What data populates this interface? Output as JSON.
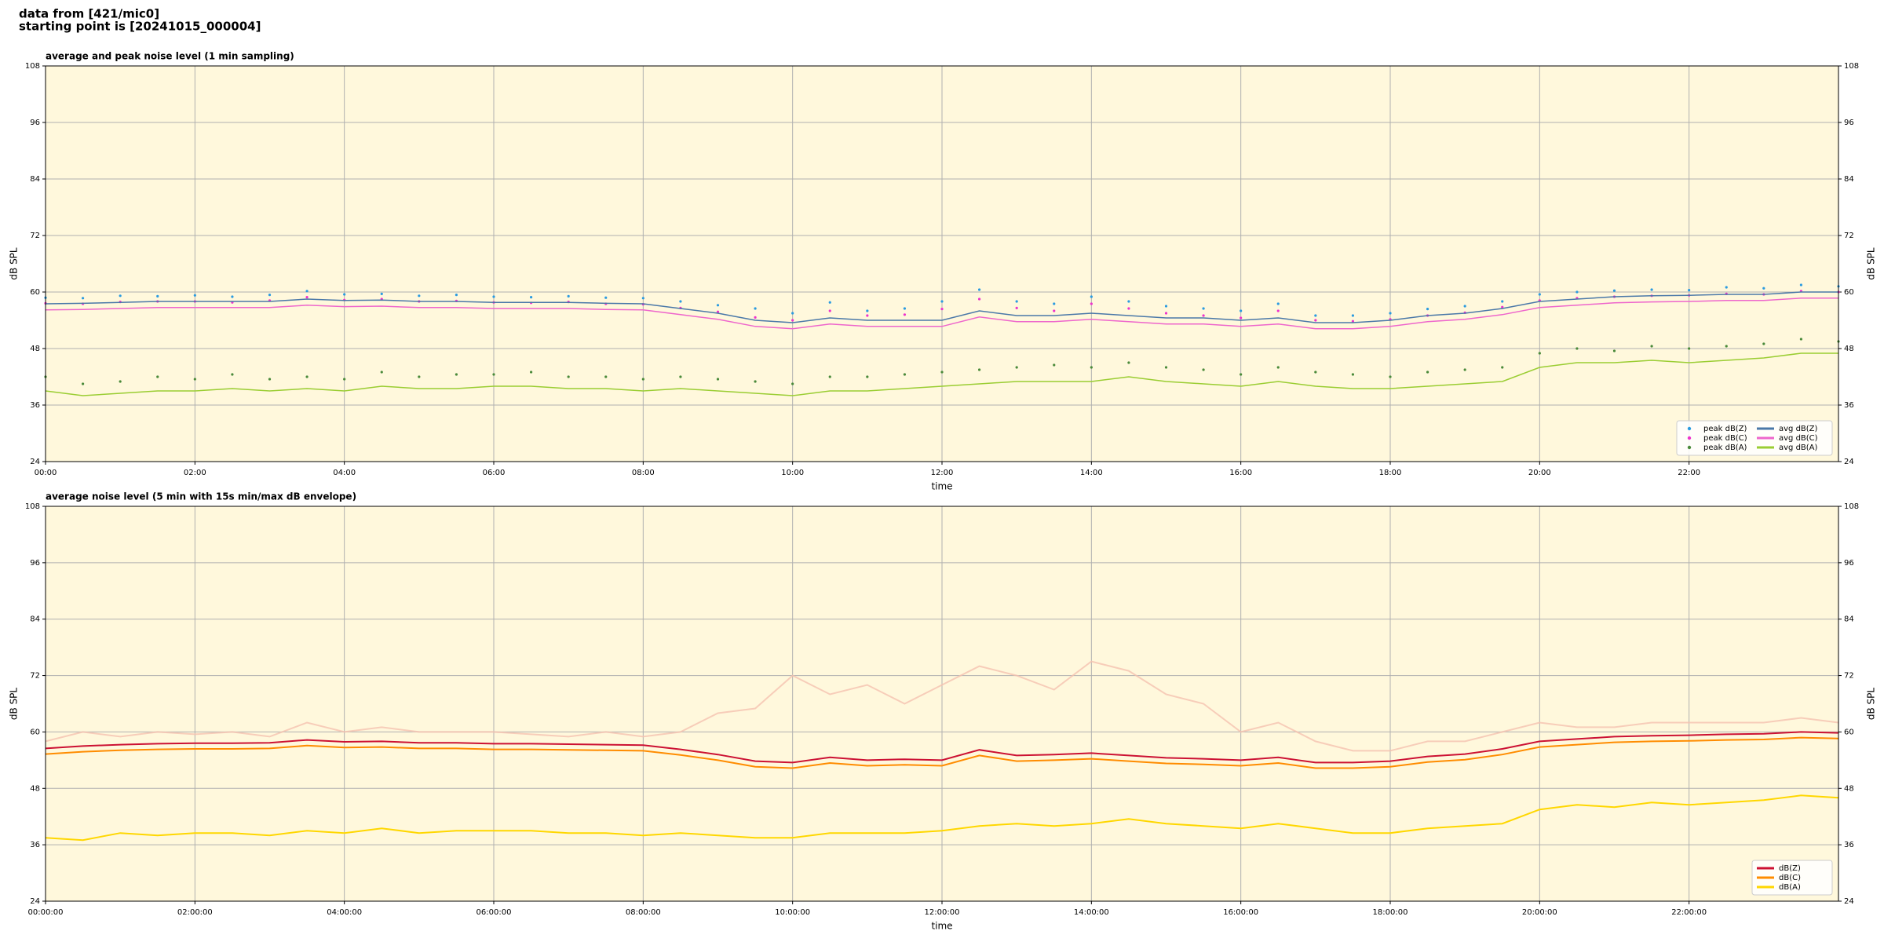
{
  "header": [
    "data from [421/mic0]",
    "starting point is [20241015_000004]"
  ],
  "chart_data": [
    {
      "type": "line",
      "title": "average and peak noise level (1 min sampling)",
      "xlabel": "time",
      "ylabel": "dB SPL",
      "background": "#fff8dc",
      "grid": true,
      "legend": "lower right",
      "legend_columns": 2,
      "xlim": [
        0,
        24
      ],
      "ylim": [
        24,
        108
      ],
      "yticks": [
        24,
        36,
        48,
        60,
        72,
        84,
        96,
        108
      ],
      "xticks": [
        {
          "value": 0,
          "label": "00:00"
        },
        {
          "value": 2,
          "label": "02:00"
        },
        {
          "value": 4,
          "label": "04:00"
        },
        {
          "value": 6,
          "label": "06:00"
        },
        {
          "value": 8,
          "label": "08:00"
        },
        {
          "value": 10,
          "label": "10:00"
        },
        {
          "value": 12,
          "label": "12:00"
        },
        {
          "value": 14,
          "label": "14:00"
        },
        {
          "value": 16,
          "label": "16:00"
        },
        {
          "value": 18,
          "label": "18:00"
        },
        {
          "value": 20,
          "label": "20:00"
        },
        {
          "value": 22,
          "label": "22:00"
        }
      ],
      "x": [
        0,
        0.5,
        1,
        1.5,
        2,
        2.5,
        3,
        3.5,
        4,
        4.5,
        5,
        5.5,
        6,
        6.5,
        7,
        7.5,
        8,
        8.5,
        9,
        9.5,
        10,
        10.5,
        11,
        11.5,
        12,
        12.5,
        13,
        13.5,
        14,
        14.5,
        15,
        15.5,
        16,
        16.5,
        17,
        17.5,
        18,
        18.5,
        19,
        19.5,
        20,
        20.5,
        21,
        21.5,
        22,
        22.5,
        23,
        23.5,
        24
      ],
      "series": [
        {
          "name": "peak dB(Z)",
          "type": "scatter",
          "color": "#2b9be0",
          "values": [
            58.8,
            58.7,
            59.2,
            59.1,
            59.3,
            59,
            59.4,
            60.2,
            59.5,
            59.6,
            59.2,
            59.4,
            59,
            58.9,
            59.1,
            58.8,
            58.7,
            58,
            57.2,
            56.5,
            55.5,
            57.8,
            56,
            56.5,
            58,
            60.5,
            58,
            57.5,
            59,
            58,
            57,
            56.5,
            56,
            57.5,
            55,
            55,
            55.5,
            56.4,
            57,
            58,
            59.5,
            60,
            60.3,
            60.5,
            60.4,
            61,
            60.8,
            61.5,
            61.2
          ]
        },
        {
          "name": "peak dB(C)",
          "type": "scatter",
          "color": "#ee33cc",
          "values": [
            57.6,
            57.5,
            57.9,
            58,
            58,
            57.8,
            58.2,
            58.9,
            58.3,
            58.5,
            58,
            58.1,
            57.8,
            57.7,
            57.9,
            57.5,
            57.4,
            56.6,
            55.8,
            54.6,
            54,
            56,
            55,
            55.2,
            56.4,
            58.5,
            56.6,
            56,
            57.5,
            56.5,
            55.5,
            55,
            54.5,
            56,
            54,
            53.8,
            54.2,
            55,
            55.6,
            56.8,
            58.2,
            58.7,
            59,
            59.2,
            59.3,
            59.6,
            59.5,
            60.2,
            60
          ]
        },
        {
          "name": "peak dB(A)",
          "type": "scatter",
          "color": "#4a8a3a",
          "values": [
            42,
            40.5,
            41,
            42,
            41.5,
            42.5,
            41.5,
            42,
            41.5,
            43,
            42,
            42.5,
            42.5,
            43,
            42,
            42,
            41.5,
            42,
            41.5,
            41,
            40.5,
            42,
            42,
            42.5,
            43,
            43.5,
            44,
            44.5,
            44,
            45,
            44,
            43.5,
            42.5,
            44,
            43,
            42.5,
            42,
            43,
            43.5,
            44,
            47,
            48,
            47.5,
            48.5,
            48,
            48.5,
            49,
            50,
            49.5
          ]
        },
        {
          "name": "avg dB(Z)",
          "type": "line",
          "color": "#4a78a8",
          "values": [
            57.5,
            57.6,
            57.8,
            58,
            58,
            58,
            58,
            58.5,
            58.2,
            58.3,
            58,
            58,
            57.8,
            57.8,
            57.8,
            57.6,
            57.5,
            56.5,
            55.5,
            54,
            53.5,
            54.5,
            54,
            54,
            54,
            56,
            55,
            55,
            55.5,
            55,
            54.5,
            54.5,
            54,
            54.5,
            53.5,
            53.5,
            54,
            55,
            55.5,
            56.5,
            58,
            58.5,
            59,
            59.2,
            59.3,
            59.5,
            59.5,
            60,
            60
          ]
        },
        {
          "name": "avg dB(C)",
          "type": "line",
          "color": "#ee66cc",
          "values": [
            56.2,
            56.3,
            56.5,
            56.7,
            56.7,
            56.7,
            56.7,
            57.2,
            56.9,
            57,
            56.7,
            56.7,
            56.5,
            56.5,
            56.5,
            56.3,
            56.2,
            55.2,
            54.2,
            52.7,
            52.2,
            53.2,
            52.7,
            52.7,
            52.7,
            54.7,
            53.7,
            53.7,
            54.2,
            53.7,
            53.2,
            53.2,
            52.7,
            53.2,
            52.2,
            52.2,
            52.7,
            53.7,
            54.2,
            55.2,
            56.7,
            57.2,
            57.7,
            57.9,
            58,
            58.2,
            58.2,
            58.7,
            58.7
          ]
        },
        {
          "name": "avg dB(A)",
          "type": "line",
          "color": "#9acd32",
          "values": [
            39,
            38,
            38.5,
            39,
            39,
            39.5,
            39,
            39.5,
            39,
            40,
            39.5,
            39.5,
            40,
            40,
            39.5,
            39.5,
            39,
            39.5,
            39,
            38.5,
            38,
            39,
            39,
            39.5,
            40,
            40.5,
            41,
            41,
            41,
            42,
            41,
            40.5,
            40,
            41,
            40,
            39.5,
            39.5,
            40,
            40.5,
            41,
            44,
            45,
            45,
            45.5,
            45,
            45.5,
            46,
            47,
            47
          ]
        }
      ]
    },
    {
      "type": "line",
      "title": "average noise level (5 min with 15s min/max dB envelope)",
      "xlabel": "time",
      "ylabel": "dB SPL",
      "background": "#fff8dc",
      "grid": true,
      "legend": "lower right",
      "legend_columns": 1,
      "xlim": [
        0,
        24
      ],
      "ylim": [
        24,
        108
      ],
      "yticks": [
        24,
        36,
        48,
        60,
        72,
        84,
        96,
        108
      ],
      "xticks": [
        {
          "value": 0,
          "label": "00:00:00"
        },
        {
          "value": 2,
          "label": "02:00:00"
        },
        {
          "value": 4,
          "label": "04:00:00"
        },
        {
          "value": 6,
          "label": "06:00:00"
        },
        {
          "value": 8,
          "label": "08:00:00"
        },
        {
          "value": 10,
          "label": "10:00:00"
        },
        {
          "value": 12,
          "label": "12:00:00"
        },
        {
          "value": 14,
          "label": "14:00:00"
        },
        {
          "value": 16,
          "label": "16:00:00"
        },
        {
          "value": 18,
          "label": "18:00:00"
        },
        {
          "value": 20,
          "label": "20:00:00"
        },
        {
          "value": 22,
          "label": "22:00:00"
        }
      ],
      "x": [
        0,
        0.5,
        1,
        1.5,
        2,
        2.5,
        3,
        3.5,
        4,
        4.5,
        5,
        5.5,
        6,
        6.5,
        7,
        7.5,
        8,
        8.5,
        9,
        9.5,
        10,
        10.5,
        11,
        11.5,
        12,
        12.5,
        13,
        13.5,
        14,
        14.5,
        15,
        15.5,
        16,
        16.5,
        17,
        17.5,
        18,
        18.5,
        19,
        19.5,
        20,
        20.5,
        21,
        21.5,
        22,
        22.5,
        23,
        23.5,
        24
      ],
      "envelope": {
        "color": "#f5c2b0",
        "values": [
          58,
          60,
          59,
          60,
          59.5,
          60,
          59,
          62,
          60,
          61,
          60,
          60,
          60,
          59.5,
          59,
          60,
          59,
          60,
          64,
          65,
          72,
          68,
          70,
          66,
          70,
          74,
          72,
          69,
          75,
          73,
          68,
          66,
          60,
          62,
          58,
          56,
          56,
          58,
          58,
          60,
          62,
          61,
          61,
          62,
          62,
          62,
          62,
          63,
          62
        ]
      },
      "series": [
        {
          "name": "dB(Z)",
          "type": "line",
          "color": "#cc1133",
          "values": [
            56.5,
            57,
            57.3,
            57.5,
            57.6,
            57.6,
            57.7,
            58.3,
            57.9,
            58,
            57.7,
            57.7,
            57.5,
            57.5,
            57.4,
            57.3,
            57.2,
            56.3,
            55.2,
            53.8,
            53.5,
            54.6,
            54,
            54.2,
            54,
            56.2,
            55,
            55.2,
            55.5,
            55,
            54.5,
            54.3,
            54,
            54.6,
            53.5,
            53.5,
            53.8,
            54.8,
            55.3,
            56.4,
            58,
            58.5,
            59,
            59.2,
            59.3,
            59.5,
            59.6,
            60,
            59.8
          ]
        },
        {
          "name": "dB(C)",
          "type": "line",
          "color": "#ff8c00",
          "values": [
            55.3,
            55.8,
            56.1,
            56.3,
            56.4,
            56.4,
            56.5,
            57.1,
            56.7,
            56.8,
            56.5,
            56.5,
            56.3,
            56.3,
            56.2,
            56.1,
            56,
            55.1,
            54,
            52.6,
            52.3,
            53.4,
            52.8,
            53,
            52.8,
            55,
            53.8,
            54,
            54.3,
            53.8,
            53.3,
            53.1,
            52.8,
            53.4,
            52.3,
            52.3,
            52.6,
            53.6,
            54.1,
            55.2,
            56.8,
            57.3,
            57.8,
            58,
            58.1,
            58.3,
            58.4,
            58.8,
            58.6
          ]
        },
        {
          "name": "dB(A)",
          "type": "line",
          "color": "#ffd700",
          "values": [
            37.5,
            37,
            38.5,
            38,
            38.5,
            38.5,
            38,
            39,
            38.5,
            39.5,
            38.5,
            39,
            39,
            39,
            38.5,
            38.5,
            38,
            38.5,
            38,
            37.5,
            37.5,
            38.5,
            38.5,
            38.5,
            39,
            40,
            40.5,
            40,
            40.5,
            41.5,
            40.5,
            40,
            39.5,
            40.5,
            39.5,
            38.5,
            38.5,
            39.5,
            40,
            40.5,
            43.5,
            44.5,
            44,
            45,
            44.5,
            45,
            45.5,
            46.5,
            46
          ]
        }
      ]
    }
  ]
}
